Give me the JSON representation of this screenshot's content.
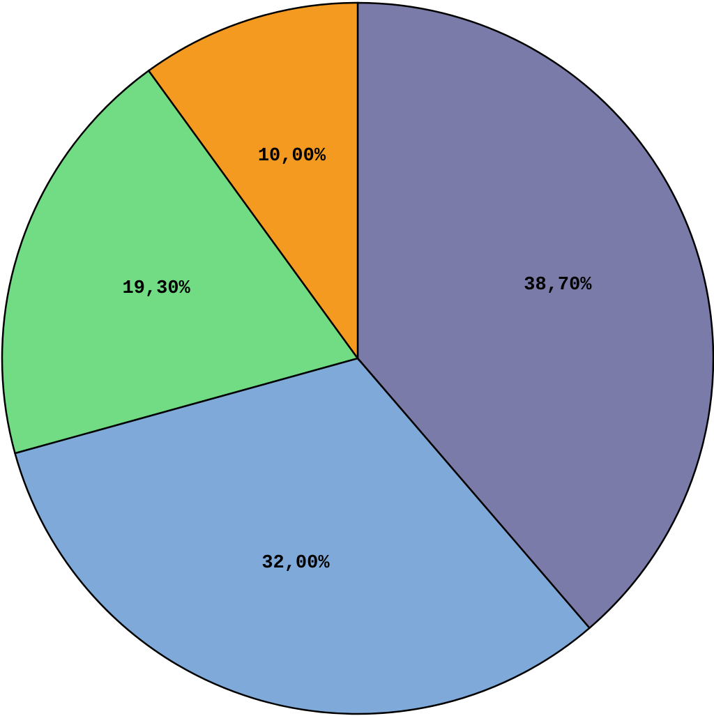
{
  "chart_data": {
    "type": "pie",
    "values": [
      38.7,
      32,
      19.3,
      10
    ],
    "value_labels": [
      "38,70%",
      "32,00%",
      "19,30%",
      "10,00%"
    ],
    "colors": [
      "#7b7baa",
      "#7ea9d8",
      "#72dc84",
      "#f59a21"
    ]
  }
}
